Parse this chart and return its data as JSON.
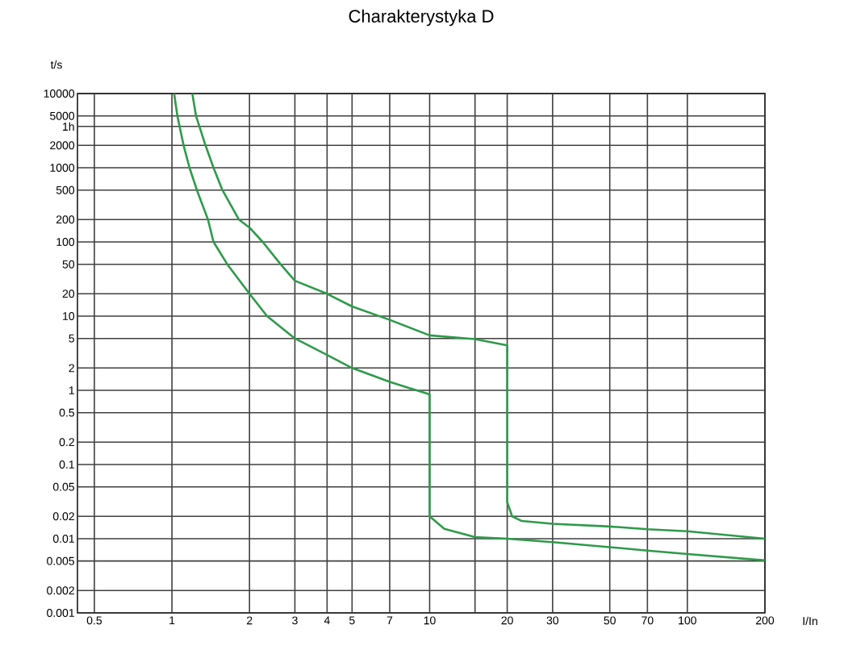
{
  "chart_data": {
    "type": "line",
    "title": "Charakterystyka D",
    "xlabel": "I/In",
    "ylabel": "t/s",
    "log": "xy",
    "grid": true,
    "marker": "none",
    "line_style": "solid",
    "xlim": [
      0.43,
      200
    ],
    "ylim": [
      0.001,
      10000
    ],
    "xticks": [
      0.5,
      1,
      2,
      3,
      4,
      5,
      7,
      10,
      {
        "value": 15,
        "label": null
      },
      20,
      30,
      50,
      70,
      100,
      200
    ],
    "yticks": [
      0.001,
      0.002,
      0.005,
      0.01,
      0.02,
      0.05,
      0.1,
      0.2,
      0.5,
      1,
      2,
      5,
      10,
      20,
      50,
      100,
      200,
      500,
      1000,
      2000,
      5000,
      10000
    ],
    "ref_lines": [
      {
        "axis": "y",
        "value": 3600,
        "label": "1h"
      }
    ],
    "series": [
      {
        "color": "#2e9a4a",
        "x": [
          1.02,
          1.05,
          1.11,
          1.17,
          1.25,
          1.38,
          1.45,
          1.64,
          2,
          2.34,
          3,
          4,
          5,
          7,
          10,
          10,
          11.4,
          15,
          20,
          30,
          50,
          70,
          100,
          200
        ],
        "values": [
          10000,
          5000,
          2000,
          1000,
          500,
          200,
          100,
          50,
          20,
          10,
          5,
          3,
          2,
          1.3,
          0.88,
          0.02,
          0.0136,
          0.0105,
          0.01,
          0.009,
          0.0077,
          0.0069,
          0.0062,
          0.0051
        ]
      },
      {
        "color": "#2e9a4a",
        "x": [
          1.2,
          1.24,
          1.35,
          1.45,
          1.57,
          1.82,
          2,
          2.25,
          2.64,
          3,
          4,
          5,
          7,
          10,
          15,
          20,
          20,
          20.9,
          22.8,
          30,
          50,
          70,
          100,
          200
        ],
        "values": [
          10000,
          5000,
          2000,
          1000,
          500,
          200,
          156,
          100,
          50,
          30,
          20,
          13.5,
          8.9,
          5.5,
          4.9,
          4.04,
          0.031,
          0.02,
          0.0173,
          0.0159,
          0.0146,
          0.0134,
          0.0126,
          0.01
        ]
      }
    ]
  }
}
